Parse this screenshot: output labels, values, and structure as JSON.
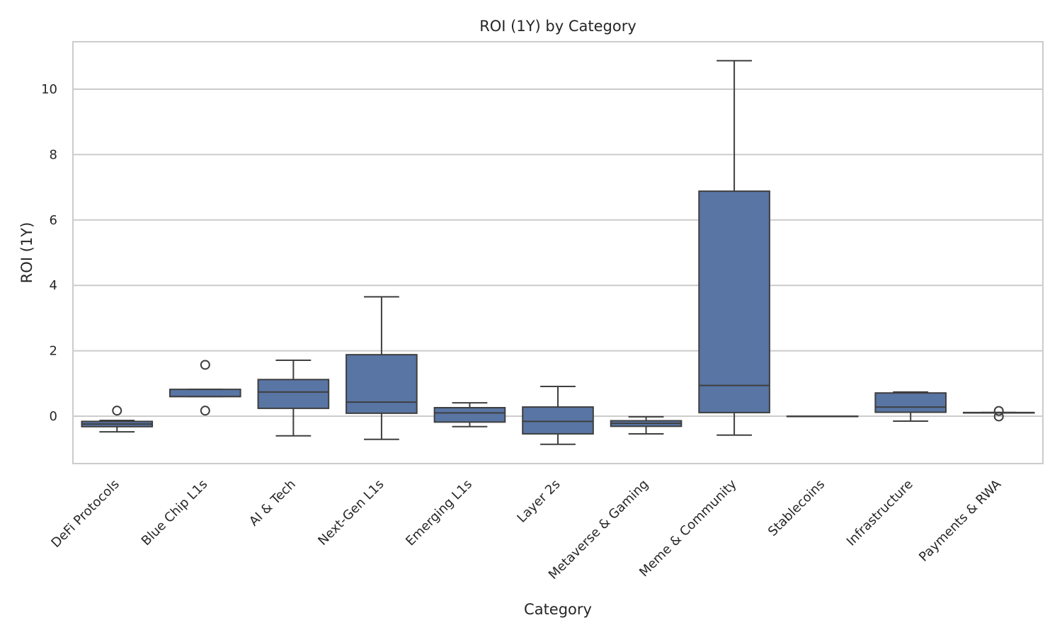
{
  "chart_data": {
    "type": "box",
    "title": "ROI (1Y) by Category",
    "xlabel": "Category",
    "ylabel": "ROI (1Y)",
    "ylim": [
      -1.45,
      11.45
    ],
    "yticks": [
      0,
      2,
      4,
      6,
      8,
      10
    ],
    "grid": true,
    "box_color": "#5875a4",
    "line_color": "#3f3f3f",
    "series": [
      {
        "category": "DeFi Protocols",
        "whisker_low": -0.48,
        "q1": -0.32,
        "median": -0.24,
        "q3": -0.16,
        "whisker_high": -0.13,
        "outliers": [
          0.17
        ]
      },
      {
        "category": "Blue Chip L1s",
        "whisker_low": 0.6,
        "q1": 0.6,
        "median": 0.6,
        "q3": 0.82,
        "whisker_high": 0.82,
        "outliers": [
          1.57,
          0.17
        ]
      },
      {
        "category": "AI & Tech",
        "whisker_low": -0.6,
        "q1": 0.24,
        "median": 0.74,
        "q3": 1.12,
        "whisker_high": 1.71,
        "outliers": []
      },
      {
        "category": "Next-Gen L1s",
        "whisker_low": -0.71,
        "q1": 0.09,
        "median": 0.43,
        "q3": 1.88,
        "whisker_high": 3.65,
        "outliers": []
      },
      {
        "category": "Emerging L1s",
        "whisker_low": -0.32,
        "q1": -0.18,
        "median": 0.1,
        "q3": 0.26,
        "whisker_high": 0.41,
        "outliers": []
      },
      {
        "category": "Layer 2s",
        "whisker_low": -0.86,
        "q1": -0.54,
        "median": -0.16,
        "q3": 0.28,
        "whisker_high": 0.91,
        "outliers": []
      },
      {
        "category": "Metaverse & Gaming",
        "whisker_low": -0.54,
        "q1": -0.31,
        "median": -0.22,
        "q3": -0.14,
        "whisker_high": -0.02,
        "outliers": []
      },
      {
        "category": "Meme & Community",
        "whisker_low": -0.58,
        "q1": 0.11,
        "median": 0.94,
        "q3": 6.88,
        "whisker_high": 10.87,
        "outliers": []
      },
      {
        "category": "Stablecoins",
        "whisker_low": 0.0,
        "q1": 0.0,
        "median": 0.0,
        "q3": 0.0,
        "whisker_high": 0.0,
        "outliers": []
      },
      {
        "category": "Infrastructure",
        "whisker_low": -0.15,
        "q1": 0.12,
        "median": 0.28,
        "q3": 0.71,
        "whisker_high": 0.74,
        "outliers": []
      },
      {
        "category": "Payments & RWA",
        "whisker_low": 0.11,
        "q1": 0.11,
        "median": 0.11,
        "q3": 0.11,
        "whisker_high": 0.11,
        "outliers": [
          0.16,
          -0.01
        ]
      }
    ]
  }
}
